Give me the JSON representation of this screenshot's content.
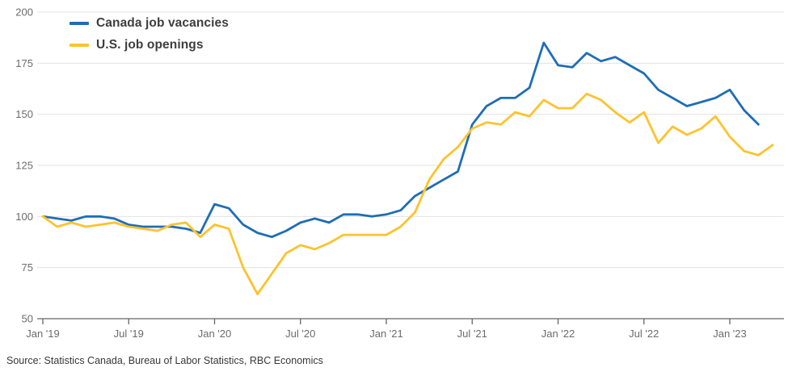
{
  "chart_data": {
    "type": "line",
    "title": "",
    "x_start_month": "Jan 2019",
    "x_tick_labels": [
      "Jan '19",
      "Jul '19",
      "Jan '20",
      "Jul '20",
      "Jan '21",
      "Jul '21",
      "Jan '22",
      "Jul '22",
      "Jan '23"
    ],
    "x_tick_month_indices": [
      0,
      6,
      12,
      18,
      24,
      30,
      36,
      42,
      48
    ],
    "y_ticks": [
      50,
      75,
      100,
      125,
      150,
      175,
      200
    ],
    "ylim": [
      50,
      200
    ],
    "grid": "horizontal",
    "legend_position": "top-left-inside",
    "series": [
      {
        "id": "canada",
        "name": "Canada job vacancies",
        "color": "#1f6db6",
        "start_month_index": 0,
        "values": [
          100,
          99,
          98,
          100,
          100,
          99,
          96,
          95,
          95,
          95,
          94,
          92,
          106,
          104,
          96,
          92,
          90,
          93,
          97,
          99,
          97,
          101,
          101,
          100,
          101,
          103,
          110,
          114,
          118,
          122,
          145,
          154,
          158,
          158,
          163,
          185,
          174,
          173,
          180,
          176,
          178,
          174,
          170,
          162,
          158,
          154,
          156,
          158,
          162,
          152,
          145
        ]
      },
      {
        "id": "us",
        "name": "U.S. job openings",
        "color": "#fdc32e",
        "start_month_index": 0,
        "values": [
          100,
          95,
          97,
          95,
          96,
          97,
          95,
          94,
          93,
          96,
          97,
          90,
          96,
          94,
          75,
          62,
          72,
          82,
          86,
          84,
          87,
          91,
          91,
          91,
          91,
          95,
          102,
          118,
          128,
          134,
          143,
          146,
          145,
          151,
          149,
          157,
          153,
          153,
          160,
          157,
          151,
          146,
          151,
          136,
          144,
          140,
          143,
          149,
          139,
          132,
          130,
          135
        ]
      }
    ],
    "source": "Source: Statistics Canada, Bureau of Labor Statistics, RBC Economics"
  },
  "style": {
    "grid_color": "#e3e3e3",
    "axis_color": "#666666",
    "tick_label_color": "#6b6b6b",
    "line_width": 2.8
  }
}
